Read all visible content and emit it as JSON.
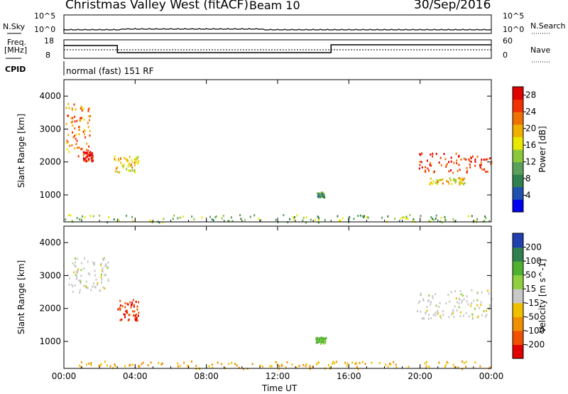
{
  "header": {
    "title": "Christmas Valley West (fitACF)",
    "beam": "Beam 10",
    "date": "30/Sep/2016"
  },
  "nsky_panel": {
    "left_label": "N.Sky",
    "right_label": "N.Search",
    "ytick_top": "10^5",
    "ytick_bottom": "10^0"
  },
  "freq_panel": {
    "left_label_1": "Freq.",
    "left_label_2": "[MHz]",
    "right_label": "Nave",
    "ytick_top": "18",
    "ytick_bottom": "8",
    "right_tick_top": "60",
    "right_tick_bottom": "0"
  },
  "cpid": {
    "label": "CPID",
    "text": "normal (fast) 151 RF"
  },
  "chart_data": [
    {
      "type": "heatmap",
      "quantity": "Power",
      "ylabel": "Slant Range [km]",
      "xlabel": "Time UT",
      "xticks": [
        "00:00",
        "04:00",
        "08:00",
        "12:00",
        "16:00",
        "20:00",
        "00:00"
      ],
      "xlim_hours": [
        0,
        24
      ],
      "ylim_km": [
        180,
        4500
      ],
      "yticks": [
        "1000",
        "2000",
        "3000",
        "4000"
      ],
      "colorbar_label": "Power [dB]",
      "colorbar_ticks": [
        "4",
        "8",
        "12",
        "16",
        "20",
        "24",
        "28"
      ],
      "colorbar_range": [
        0,
        30
      ],
      "colormap": [
        "#0000f0",
        "#2050b0",
        "#2f7f4f",
        "#5aa05a",
        "#8cc83c",
        "#e8e800",
        "#f0b000",
        "#f07000",
        "#f03000",
        "#e00000"
      ],
      "scatter_regions": [
        {
          "t": [
            0.1,
            1.5
          ],
          "r": [
            2200,
            3800
          ],
          "value": 22
        },
        {
          "t": [
            1.0,
            1.6
          ],
          "r": [
            2050,
            2350
          ],
          "value": 28
        },
        {
          "t": [
            2.8,
            4.2
          ],
          "r": [
            1700,
            2200
          ],
          "value": 18
        },
        {
          "t": [
            14.2,
            14.6
          ],
          "r": [
            950,
            1100
          ],
          "value": 10
        },
        {
          "t": [
            19.9,
            24.0
          ],
          "r": [
            1700,
            2300
          ],
          "value": 26
        },
        {
          "t": [
            20.5,
            22.5
          ],
          "r": [
            1350,
            1550
          ],
          "value": 18
        },
        {
          "t": [
            0.0,
            24.0
          ],
          "r": [
            190,
            420
          ],
          "value": 12
        }
      ]
    },
    {
      "type": "heatmap",
      "quantity": "Velocity",
      "ylabel": "Slant Range [km]",
      "xlabel": "Time UT",
      "xticks": [
        "00:00",
        "04:00",
        "08:00",
        "12:00",
        "16:00",
        "20:00",
        "00:00"
      ],
      "xlim_hours": [
        0,
        24
      ],
      "ylim_km": [
        180,
        4500
      ],
      "yticks": [
        "1000",
        "2000",
        "3000",
        "4000"
      ],
      "colorbar_label": "Velocity [m s^-1]",
      "colorbar_ticks": [
        "200",
        "100",
        "50",
        "15",
        "-15",
        "-50",
        "-100",
        "-200"
      ],
      "colormap": [
        "#2040b0",
        "#2f7f4f",
        "#50b030",
        "#90d040",
        "#c8c8c8",
        "#f0c000",
        "#f09000",
        "#f05000",
        "#e00000"
      ],
      "scatter_regions": [
        {
          "t": [
            0.2,
            2.5
          ],
          "r": [
            2500,
            3600
          ],
          "value": 0
        },
        {
          "t": [
            3.0,
            4.2
          ],
          "r": [
            1650,
            2300
          ],
          "value": -200
        },
        {
          "t": [
            14.1,
            14.7
          ],
          "r": [
            950,
            1150
          ],
          "value": 60
        },
        {
          "t": [
            19.8,
            24.0
          ],
          "r": [
            1700,
            2600
          ],
          "value": 0
        },
        {
          "t": [
            0.0,
            24.0
          ],
          "r": [
            190,
            420
          ],
          "value": -50
        }
      ]
    }
  ]
}
